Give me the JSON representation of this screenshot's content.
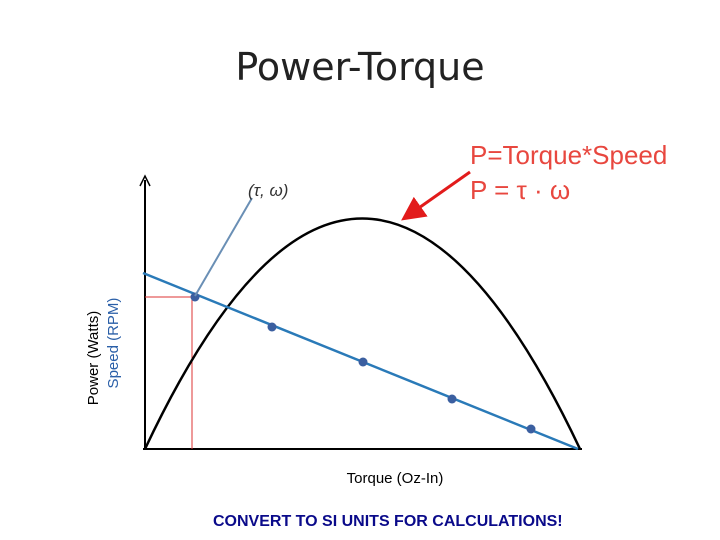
{
  "header": {
    "title": "Power-Torque"
  },
  "diagram": {
    "formula": [
      "P=Torque*Speed",
      "P = τ · ω"
    ],
    "point_label": "(τ, ω)",
    "y_axis_labels": [
      "Power (Watts)",
      "Speed (RPM)"
    ],
    "x_axis_label": "Torque (Oz-In)"
  },
  "footer": {
    "note": "CONVERT TO SI UNITS FOR CALCULATIONS!"
  }
}
